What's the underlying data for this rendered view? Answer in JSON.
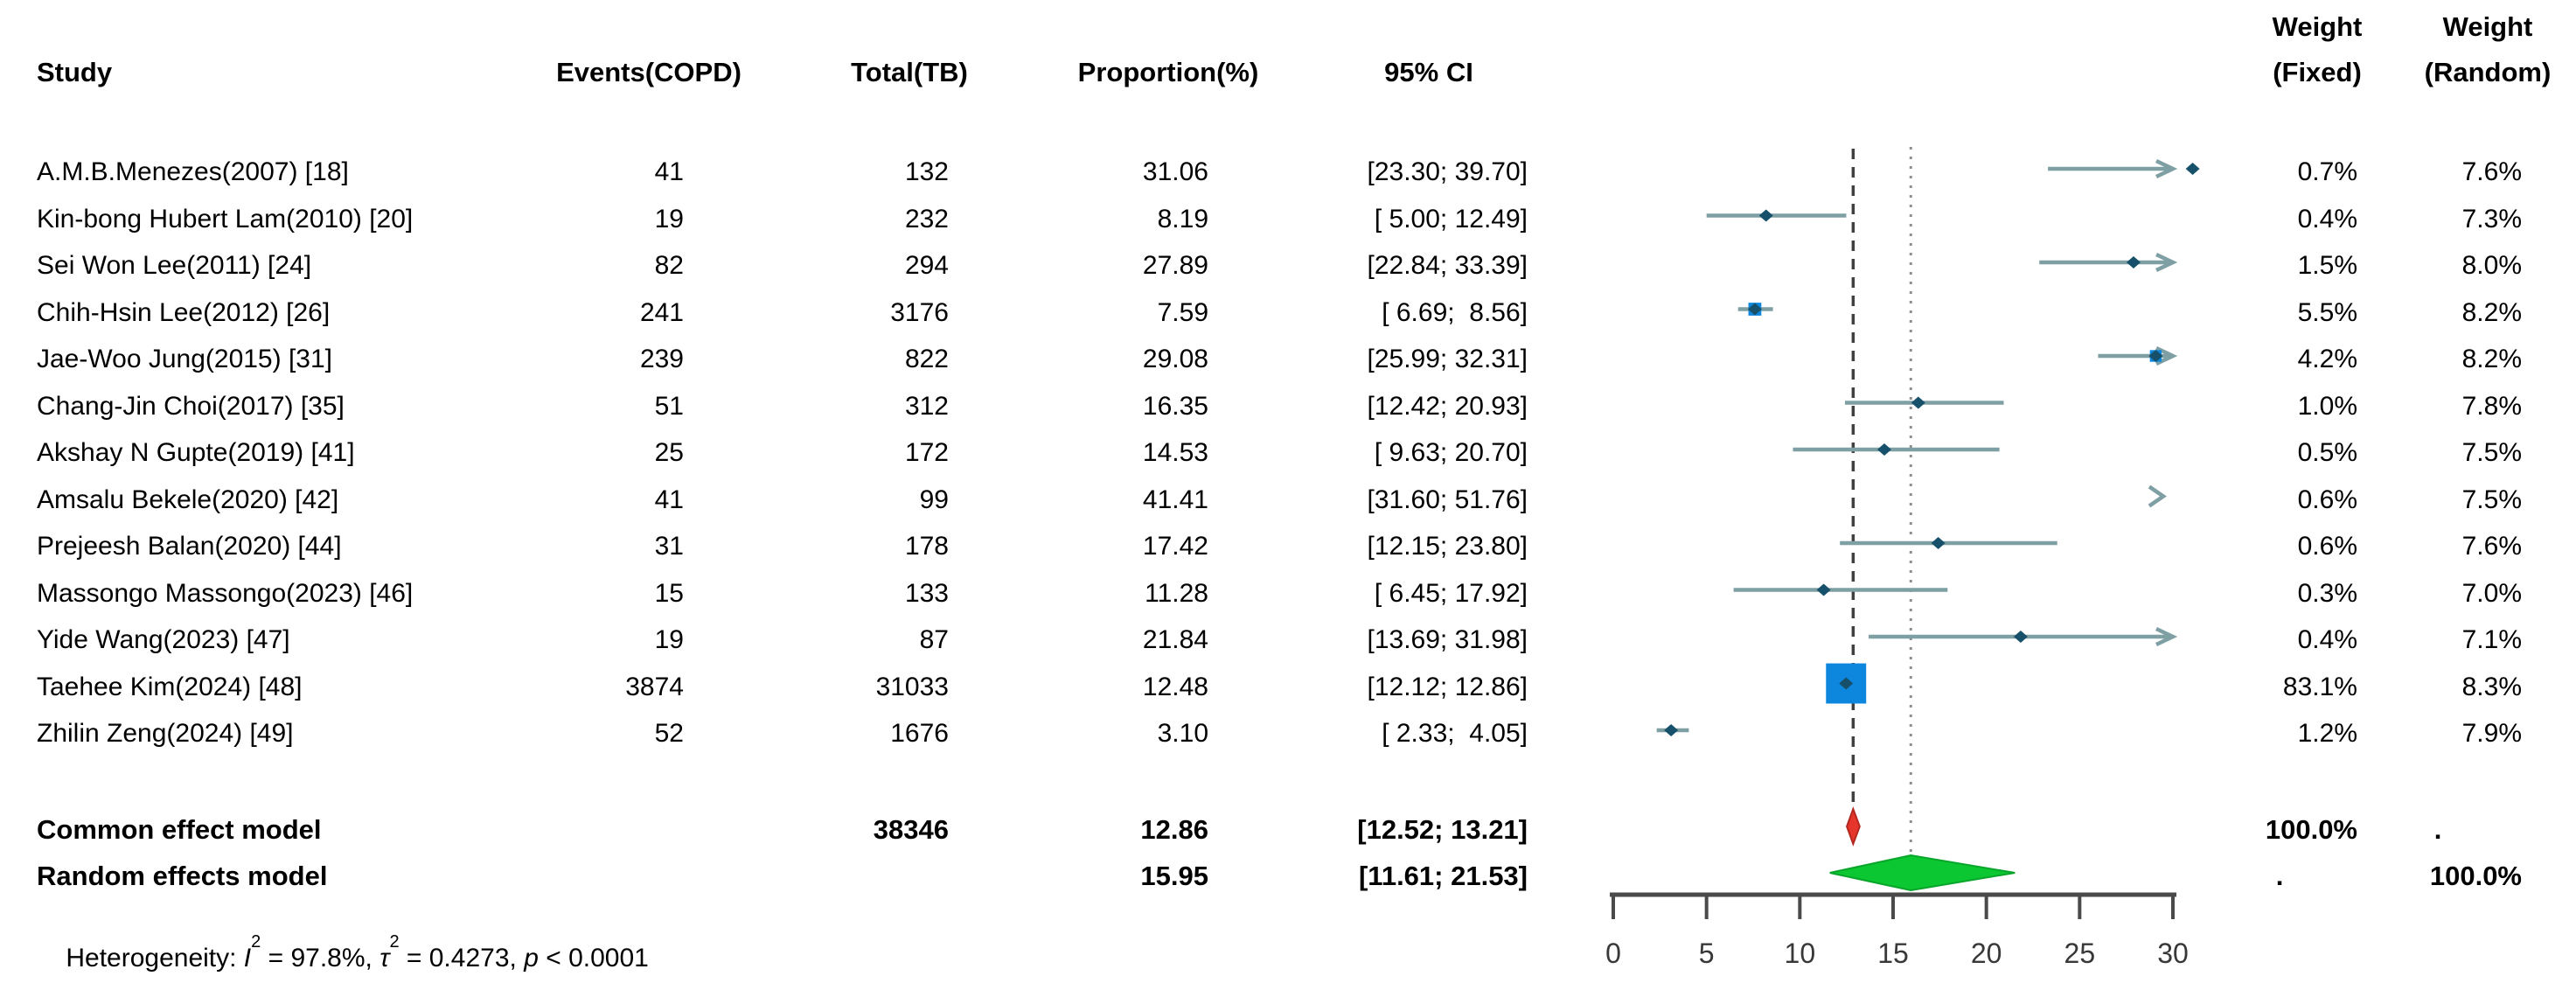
{
  "header": {
    "study": "Study",
    "events": "Events(COPD)",
    "total": "Total(TB)",
    "proportion": "Proportion(%)",
    "ci": "95% CI",
    "weight_fixed_line1": "Weight",
    "weight_fixed_line2": "(Fixed)",
    "weight_random_line1": "Weight",
    "weight_random_line2": "(Random)"
  },
  "colors": {
    "ci_line": "#7e9fa3",
    "point_marker": "#17506a",
    "weight_square": "#0d87dd",
    "common_diamond": "#e6352b",
    "common_diamond_edge": "#b3271e",
    "random_diamond": "#0bc832",
    "random_diamond_edge": "#09a52a",
    "dashed_line": "#404040",
    "dotted_line": "#8f8f8f",
    "axis": "#4a4a4a",
    "tick_label": "#383838"
  },
  "chart_data": {
    "type": "forest",
    "xlabel": "",
    "axis": {
      "min": 0,
      "max": 30,
      "ticks": [
        0,
        5,
        10,
        15,
        20,
        25,
        30
      ]
    },
    "grid": false,
    "reference_lines": [
      {
        "name": "common-effect",
        "value": 12.86,
        "style": "dashed"
      },
      {
        "name": "random-effects",
        "value": 15.95,
        "style": "dotted"
      }
    ],
    "studies": [
      {
        "name": "A.M.B.Menezes(2007) [18]",
        "events": "41",
        "total": "132",
        "prop_text": "31.06",
        "proportion": 31.06,
        "ci_lower": 23.3,
        "ci_upper": 39.7,
        "ci_text": "[23.30; 39.70]",
        "weight_fixed": 0.7,
        "wf_text": "0.7%",
        "wr_text": "7.6%"
      },
      {
        "name": "Kin-bong Hubert Lam(2010) [20]",
        "events": "19",
        "total": "232",
        "prop_text": "8.19",
        "proportion": 8.19,
        "ci_lower": 5.0,
        "ci_upper": 12.49,
        "ci_text": "[ 5.00; 12.49]",
        "weight_fixed": 0.4,
        "wf_text": "0.4%",
        "wr_text": "7.3%"
      },
      {
        "name": "Sei Won Lee(2011) [24]",
        "events": "82",
        "total": "294",
        "prop_text": "27.89",
        "proportion": 27.89,
        "ci_lower": 22.84,
        "ci_upper": 33.39,
        "ci_text": "[22.84; 33.39]",
        "weight_fixed": 1.5,
        "wf_text": "1.5%",
        "wr_text": "8.0%"
      },
      {
        "name": "Chih-Hsin Lee(2012) [26]",
        "events": "241",
        "total": "3176",
        "prop_text": "7.59",
        "proportion": 7.59,
        "ci_lower": 6.69,
        "ci_upper": 8.56,
        "ci_text": "[ 6.69;  8.56]",
        "weight_fixed": 5.5,
        "wf_text": "5.5%",
        "wr_text": "8.2%"
      },
      {
        "name": "Jae-Woo Jung(2015) [31]",
        "events": "239",
        "total": "822",
        "prop_text": "29.08",
        "proportion": 29.08,
        "ci_lower": 25.99,
        "ci_upper": 32.31,
        "ci_text": "[25.99; 32.31]",
        "weight_fixed": 4.2,
        "wf_text": "4.2%",
        "wr_text": "8.2%"
      },
      {
        "name": "Chang-Jin Choi(2017) [35]",
        "events": "51",
        "total": "312",
        "prop_text": "16.35",
        "proportion": 16.35,
        "ci_lower": 12.42,
        "ci_upper": 20.93,
        "ci_text": "[12.42; 20.93]",
        "weight_fixed": 1.0,
        "wf_text": "1.0%",
        "wr_text": "7.8%"
      },
      {
        "name": "Akshay N Gupte(2019) [41]",
        "events": "25",
        "total": "172",
        "prop_text": "14.53",
        "proportion": 14.53,
        "ci_lower": 9.63,
        "ci_upper": 20.7,
        "ci_text": "[ 9.63; 20.70]",
        "weight_fixed": 0.5,
        "wf_text": "0.5%",
        "wr_text": "7.5%"
      },
      {
        "name": "Amsalu Bekele(2020) [42]",
        "events": "41",
        "total": "99",
        "prop_text": "41.41",
        "proportion": 41.41,
        "ci_lower": 31.6,
        "ci_upper": 51.76,
        "ci_text": "[31.60; 51.76]",
        "weight_fixed": 0.6,
        "wf_text": "0.6%",
        "wr_text": "7.5%"
      },
      {
        "name": "Prejeesh Balan(2020) [44]",
        "events": "31",
        "total": "178",
        "prop_text": "17.42",
        "proportion": 17.42,
        "ci_lower": 12.15,
        "ci_upper": 23.8,
        "ci_text": "[12.15; 23.80]",
        "weight_fixed": 0.6,
        "wf_text": "0.6%",
        "wr_text": "7.6%"
      },
      {
        "name": "Massongo Massongo(2023) [46]",
        "events": "15",
        "total": "133",
        "prop_text": "11.28",
        "proportion": 11.28,
        "ci_lower": 6.45,
        "ci_upper": 17.92,
        "ci_text": "[ 6.45; 17.92]",
        "weight_fixed": 0.3,
        "wf_text": "0.3%",
        "wr_text": "7.0%"
      },
      {
        "name": "Yide Wang(2023) [47]",
        "events": "19",
        "total": "87",
        "prop_text": "21.84",
        "proportion": 21.84,
        "ci_lower": 13.69,
        "ci_upper": 31.98,
        "ci_text": "[13.69; 31.98]",
        "weight_fixed": 0.4,
        "wf_text": "0.4%",
        "wr_text": "7.1%"
      },
      {
        "name": "Taehee Kim(2024) [48]",
        "events": "3874",
        "total": "31033",
        "prop_text": "12.48",
        "proportion": 12.48,
        "ci_lower": 12.12,
        "ci_upper": 12.86,
        "ci_text": "[12.12; 12.86]",
        "weight_fixed": 83.1,
        "wf_text": "83.1%",
        "wr_text": "8.3%"
      },
      {
        "name": "Zhilin Zeng(2024) [49]",
        "events": "52",
        "total": "1676",
        "prop_text": "3.10",
        "proportion": 3.1,
        "ci_lower": 2.33,
        "ci_upper": 4.05,
        "ci_text": "[ 2.33;  4.05]",
        "weight_fixed": 1.2,
        "wf_text": "1.2%",
        "wr_text": "7.9%"
      }
    ],
    "summary": [
      {
        "label": "Common effect model",
        "total": "38346",
        "prop_text": "12.86",
        "proportion": 12.86,
        "ci_lower": 12.52,
        "ci_upper": 13.21,
        "ci_text": "[12.52; 13.21]",
        "wf_text": "100.0%",
        "wr_text": ".",
        "diamond": "common"
      },
      {
        "label": "Random effects model",
        "total": "",
        "prop_text": "15.95",
        "proportion": 15.95,
        "ci_lower": 11.61,
        "ci_upper": 21.53,
        "ci_text": "[11.61; 21.53]",
        "wf_text": ".",
        "wr_text": "100.0%",
        "diamond": "random"
      }
    ],
    "heterogeneity": {
      "prefix": "Heterogeneity: ",
      "i_sym": "I",
      "i_sup": "2",
      "mid1": " = 97.8%, ",
      "tau_sym": "τ",
      "tau_sup": "2",
      "mid2": " = 0.4273, ",
      "p_sym": "p",
      "tail": " < 0.0001"
    }
  }
}
